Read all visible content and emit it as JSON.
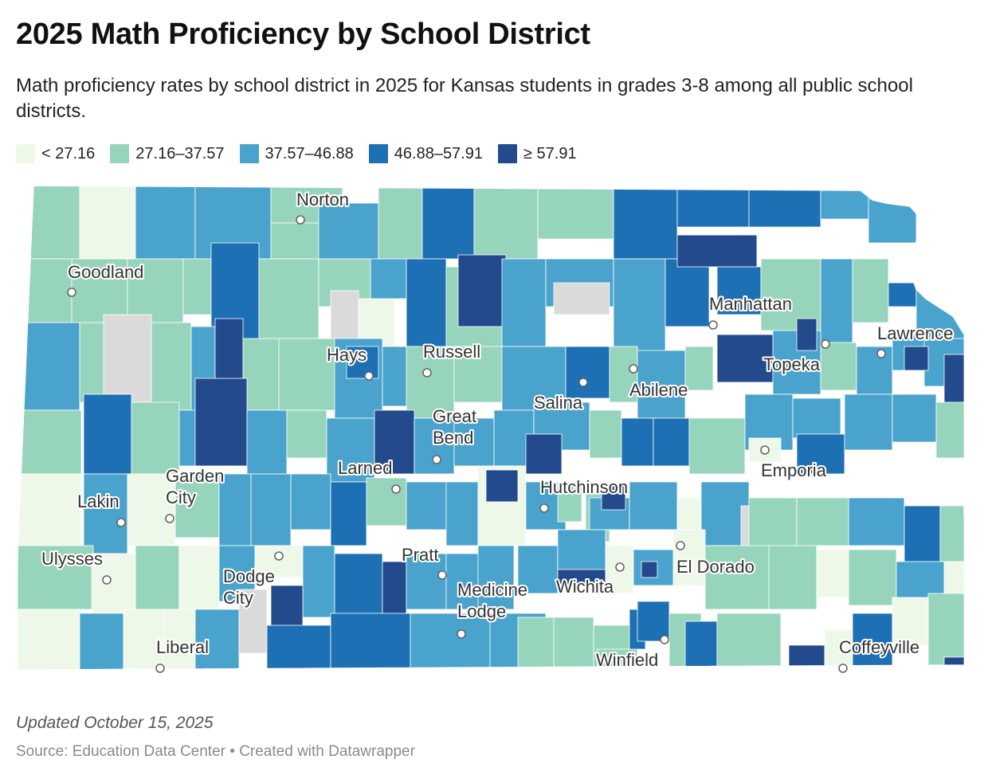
{
  "title": "2025 Math Proficiency by School District",
  "subtitle": "Math proficiency rates by school district in 2025 for Kansas students in grades 3-8 among all public school districts.",
  "legend": [
    {
      "label": "< 27.16",
      "color": "#eef8e8"
    },
    {
      "label": "27.16–37.57",
      "color": "#97d4bc"
    },
    {
      "label": "37.57–46.88",
      "color": "#4aa3cc"
    },
    {
      "label": "46.88–57.91",
      "color": "#1d70b4"
    },
    {
      "label": "≥ 57.91",
      "color": "#234a8c"
    }
  ],
  "no_data_color": "#dadada",
  "cities": [
    {
      "id": "norton",
      "lines": [
        "Norton"
      ]
    },
    {
      "id": "goodland",
      "lines": [
        "Goodland"
      ]
    },
    {
      "id": "manhattan",
      "lines": [
        "Manhattan"
      ]
    },
    {
      "id": "hays",
      "lines": [
        "Hays"
      ]
    },
    {
      "id": "russell",
      "lines": [
        "Russell"
      ]
    },
    {
      "id": "lawrence",
      "lines": [
        "Lawrence"
      ]
    },
    {
      "id": "topeka",
      "lines": [
        "Topeka"
      ]
    },
    {
      "id": "abilene",
      "lines": [
        "Abilene"
      ]
    },
    {
      "id": "salina",
      "lines": [
        "Salina"
      ]
    },
    {
      "id": "great-bend",
      "lines": [
        "Great",
        "Bend"
      ]
    },
    {
      "id": "emporia",
      "lines": [
        "Emporia"
      ]
    },
    {
      "id": "larned",
      "lines": [
        "Larned"
      ]
    },
    {
      "id": "garden-city",
      "lines": [
        "Garden",
        "City"
      ]
    },
    {
      "id": "hutchinson",
      "lines": [
        "Hutchinson"
      ]
    },
    {
      "id": "lakin",
      "lines": [
        "Lakin"
      ]
    },
    {
      "id": "ulysses",
      "lines": [
        "Ulysses"
      ]
    },
    {
      "id": "pratt",
      "lines": [
        "Pratt"
      ]
    },
    {
      "id": "el-dorado",
      "lines": [
        "El Dorado"
      ]
    },
    {
      "id": "dodge-city",
      "lines": [
        "Dodge",
        "City"
      ]
    },
    {
      "id": "medicine-lodge",
      "lines": [
        "Medicine",
        "Lodge"
      ]
    },
    {
      "id": "wichita",
      "lines": [
        "Wichita"
      ]
    },
    {
      "id": "liberal",
      "lines": [
        "Liberal"
      ]
    },
    {
      "id": "coffeyville",
      "lines": [
        "Coffeyville"
      ]
    },
    {
      "id": "winfield",
      "lines": [
        "Winfield"
      ]
    }
  ],
  "footer": {
    "updated": "Updated October 15, 2025",
    "source": "Source: Education Data Center • Created with Datawrapper"
  }
}
